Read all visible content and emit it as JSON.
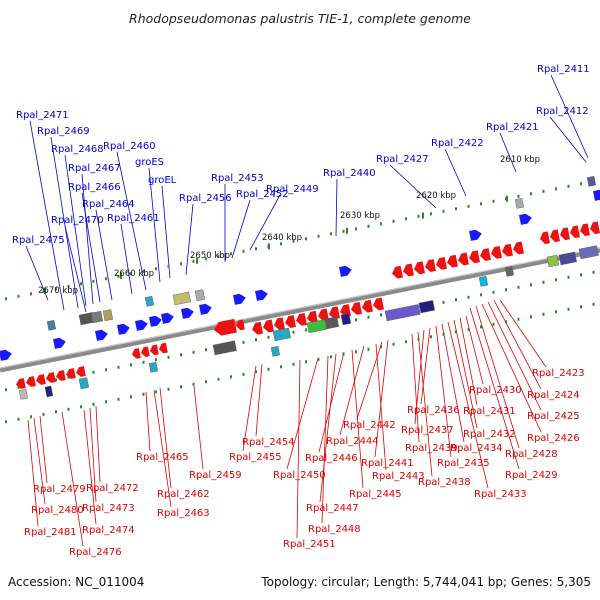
{
  "title": "Rhodopseudomonas palustris TIE-1, complete genome",
  "footer": {
    "accession": "Accession: NC_011004",
    "summary": "Topology: circular; Length: 5,744,041 bp; Genes: 5,305"
  },
  "colors": {
    "forward_label": "#0000cc",
    "reverse_label": "#dd0000",
    "forward_gene": "#1a1aff",
    "reverse_gene": "#ee1111",
    "tick": "#2a8a2a",
    "backbone": "#8a8a8a"
  },
  "position_ticks": [
    "2610 kbp",
    "2620 kbp",
    "2630 kbp",
    "2640 kbp",
    "2650 kbp",
    "2660 kbp",
    "2670 kbp"
  ],
  "forward_labels": [
    "Rpal_2411",
    "Rpal_2412",
    "Rpal_2421",
    "Rpal_2422",
    "Rpal_2427",
    "Rpal_2440",
    "Rpal_2449",
    "Rpal_2452",
    "Rpal_2453",
    "Rpal_2456",
    "groEL",
    "groES",
    "Rpal_2460",
    "Rpal_2461",
    "Rpal_2464",
    "Rpal_2466",
    "Rpal_2467",
    "Rpal_2468",
    "Rpal_2469",
    "Rpal_2470",
    "Rpal_2471",
    "Rpal_2475"
  ],
  "reverse_labels": [
    "Rpal_2423",
    "Rpal_2424",
    "Rpal_2425",
    "Rpal_2426",
    "Rpal_2428",
    "Rpal_2429",
    "Rpal_2430",
    "Rpal_2431",
    "Rpal_2432",
    "Rpal_2433",
    "Rpal_2434",
    "Rpal_2435",
    "Rpal_2436",
    "Rpal_2437",
    "Rpal_2438",
    "Rpal_2439",
    "Rpal_2441",
    "Rpal_2442",
    "Rpal_2443",
    "Rpal_2444",
    "Rpal_2445",
    "Rpal_2446",
    "Rpal_2447",
    "Rpal_2448",
    "Rpal_2450",
    "Rpal_2451",
    "Rpal_2454",
    "Rpal_2455",
    "Rpal_2459",
    "Rpal_2462",
    "Rpal_2463",
    "Rpal_2465",
    "Rpal_2472",
    "Rpal_2473",
    "Rpal_2474",
    "Rpal_2476",
    "Rpal_2479",
    "Rpal_2480",
    "Rpal_2481"
  ]
}
